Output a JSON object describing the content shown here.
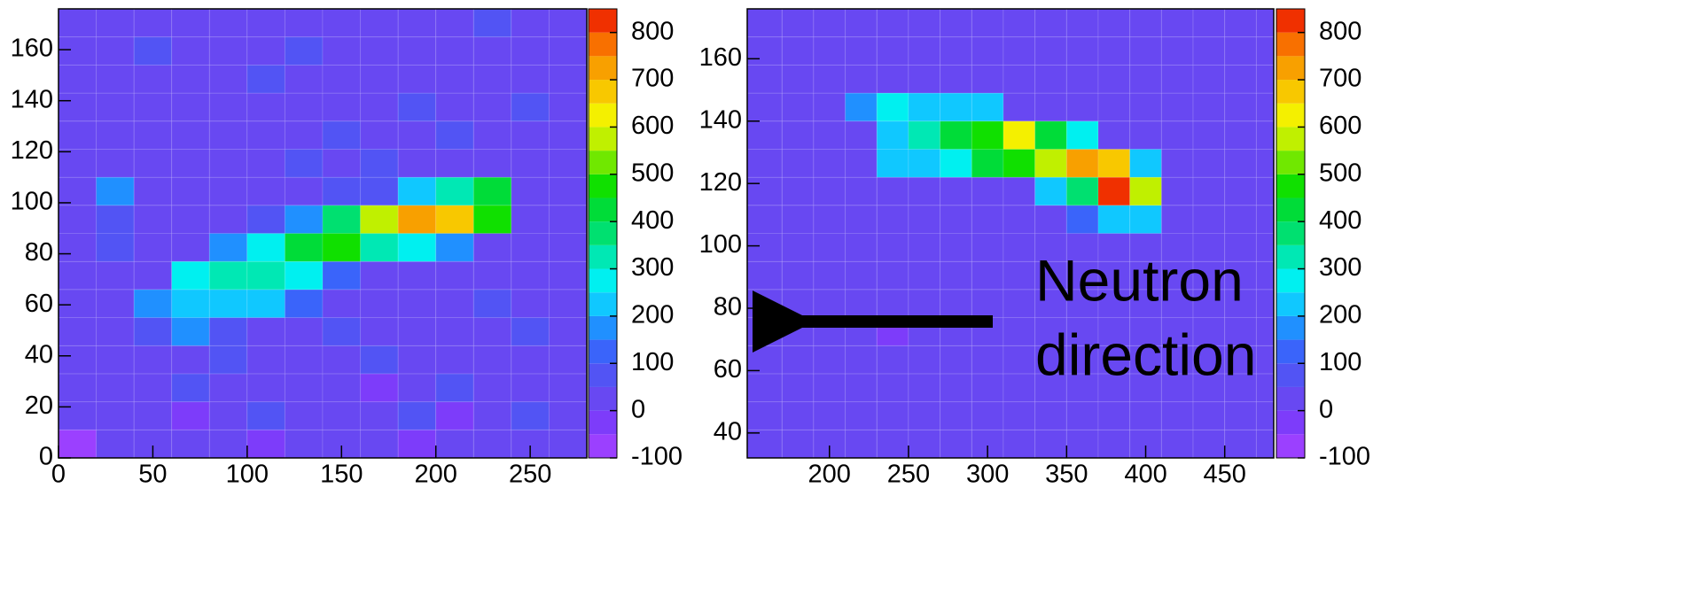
{
  "chart_data": [
    {
      "type": "heatmap",
      "xbins": [
        0,
        20,
        40,
        60,
        80,
        100,
        120,
        140,
        160,
        180,
        200,
        220,
        240,
        260,
        280
      ],
      "ybins": [
        0,
        11,
        22,
        33,
        44,
        55,
        66,
        77,
        88,
        99,
        110,
        121,
        132,
        143,
        154,
        165,
        176
      ],
      "xlim": [
        0,
        280
      ],
      "ylim": [
        0,
        176
      ],
      "xticks": [
        0,
        50,
        100,
        150,
        200,
        250
      ],
      "yticks": [
        0,
        20,
        40,
        60,
        80,
        100,
        120,
        140,
        160
      ],
      "zlim": [
        -100,
        850
      ],
      "zticks": [
        -100,
        0,
        100,
        200,
        300,
        400,
        500,
        600,
        700,
        800
      ],
      "colors": [
        "#9b40ff",
        "#7d3cfa",
        "#6848f2",
        "#5254f4",
        "#3a64fa",
        "#2090ff",
        "#10c8ff",
        "#00f0f0",
        "#00e8b4",
        "#00e070",
        "#00dc38",
        "#10e000",
        "#70e800",
        "#c0f000",
        "#f4f000",
        "#f8c800",
        "#f8a000",
        "#f87000",
        "#f03000"
      ],
      "z": [
        [
          -60,
          10,
          20,
          0,
          30,
          -10,
          20,
          40,
          0,
          -20,
          10,
          30,
          0,
          20
        ],
        [
          20,
          0,
          40,
          -10,
          10,
          60,
          0,
          30,
          10,
          50,
          -30,
          0,
          80,
          10
        ],
        [
          0,
          30,
          10,
          50,
          20,
          0,
          40,
          10,
          -10,
          20,
          60,
          10,
          30,
          0
        ],
        [
          40,
          10,
          20,
          30,
          60,
          10,
          0,
          20,
          50,
          10,
          0,
          40,
          10,
          20
        ],
        [
          10,
          30,
          80,
          150,
          90,
          40,
          20,
          60,
          10,
          30,
          20,
          0,
          50,
          10
        ],
        [
          0,
          20,
          150,
          220,
          230,
          230,
          120,
          40,
          20,
          10,
          30,
          60,
          0,
          20
        ],
        [
          30,
          10,
          40,
          250,
          320,
          330,
          280,
          100,
          40,
          20,
          10,
          0,
          30,
          10
        ],
        [
          20,
          60,
          30,
          40,
          180,
          250,
          400,
          450,
          300,
          250,
          150,
          40,
          10,
          30
        ],
        [
          40,
          90,
          20,
          10,
          30,
          60,
          150,
          350,
          550,
          700,
          650,
          450,
          30,
          10
        ],
        [
          10,
          150,
          30,
          20,
          10,
          40,
          20,
          60,
          80,
          200,
          300,
          400,
          20,
          0
        ],
        [
          20,
          0,
          40,
          10,
          30,
          20,
          50,
          10,
          60,
          30,
          20,
          10,
          40,
          20
        ],
        [
          0,
          30,
          10,
          20,
          40,
          10,
          30,
          70,
          20,
          10,
          50,
          30,
          10,
          20
        ],
        [
          30,
          10,
          20,
          40,
          0,
          30,
          10,
          20,
          40,
          60,
          10,
          20,
          50,
          10
        ],
        [
          10,
          40,
          30,
          0,
          20,
          50,
          20,
          10,
          30,
          20,
          40,
          10,
          20,
          30
        ],
        [
          20,
          10,
          50,
          30,
          10,
          20,
          60,
          30,
          10,
          40,
          20,
          30,
          10,
          0
        ],
        [
          0,
          20,
          10,
          40,
          30,
          10,
          20,
          40,
          20,
          10,
          30,
          50,
          20,
          10
        ]
      ]
    },
    {
      "type": "heatmap",
      "xbins": [
        148,
        170,
        190,
        210,
        230,
        250,
        270,
        290,
        310,
        330,
        350,
        370,
        390,
        410,
        430,
        450,
        470,
        481
      ],
      "ybins": [
        32,
        41,
        50,
        59,
        68,
        77,
        86,
        95,
        104,
        113,
        122,
        131,
        140,
        149,
        158,
        167,
        176
      ],
      "xlim": [
        148,
        481
      ],
      "ylim": [
        32,
        176
      ],
      "xticks": [
        200,
        250,
        300,
        350,
        400,
        450
      ],
      "yticks": [
        40,
        60,
        80,
        100,
        120,
        140,
        160
      ],
      "zlim": [
        -100,
        850
      ],
      "zticks": [
        -100,
        0,
        100,
        200,
        300,
        400,
        500,
        600,
        700,
        800
      ],
      "colors": [
        "#9b40ff",
        "#7d3cfa",
        "#6848f2",
        "#5254f4",
        "#3a64fa",
        "#2090ff",
        "#10c8ff",
        "#00f0f0",
        "#00e8b4",
        "#00e070",
        "#00dc38",
        "#10e000",
        "#70e800",
        "#c0f000",
        "#f4f000",
        "#f8c800",
        "#f8a000",
        "#f87000",
        "#f03000"
      ],
      "annotation": [
        "Neutron",
        "direction"
      ],
      "z": [
        [
          20,
          0,
          30,
          10,
          40,
          20,
          10,
          30,
          0,
          20,
          40,
          10,
          20,
          30,
          10,
          0,
          20
        ],
        [
          10,
          30,
          20,
          0,
          10,
          40,
          20,
          10,
          30,
          10,
          20,
          0,
          30,
          10,
          40,
          20,
          10
        ],
        [
          30,
          10,
          0,
          40,
          20,
          10,
          30,
          20,
          10,
          40,
          0,
          20,
          10,
          20,
          30,
          10,
          0
        ],
        [
          0,
          20,
          40,
          10,
          30,
          20,
          0,
          40,
          20,
          10,
          30,
          10,
          20,
          0,
          10,
          30,
          20
        ],
        [
          20,
          40,
          10,
          30,
          -40,
          10,
          20,
          30,
          10,
          0,
          20,
          40,
          10,
          30,
          20,
          10,
          30
        ],
        [
          10,
          0,
          30,
          20,
          10,
          30,
          40,
          10,
          30,
          20,
          10,
          30,
          0,
          20,
          10,
          40,
          10
        ],
        [
          30,
          20,
          10,
          0,
          20,
          40,
          10,
          20,
          0,
          30,
          40,
          10,
          20,
          10,
          30,
          0,
          20
        ],
        [
          0,
          30,
          20,
          40,
          10,
          20,
          30,
          0,
          20,
          10,
          30,
          20,
          40,
          10,
          20,
          30,
          10
        ],
        [
          20,
          10,
          40,
          10,
          30,
          0,
          20,
          30,
          40,
          20,
          100,
          200,
          230,
          20,
          10,
          20,
          30
        ],
        [
          10,
          30,
          0,
          20,
          10,
          30,
          40,
          20,
          30,
          200,
          350,
          800,
          550,
          40,
          20,
          10,
          0
        ],
        [
          30,
          0,
          20,
          10,
          200,
          220,
          250,
          400,
          450,
          550,
          700,
          650,
          200,
          10,
          30,
          20,
          10
        ],
        [
          0,
          20,
          10,
          30,
          200,
          300,
          400,
          450,
          600,
          400,
          250,
          30,
          20,
          40,
          10,
          0,
          20
        ],
        [
          20,
          10,
          30,
          150,
          250,
          200,
          230,
          200,
          30,
          10,
          20,
          40,
          10,
          20,
          30,
          10,
          20
        ],
        [
          10,
          40,
          20,
          0,
          30,
          10,
          20,
          30,
          20,
          40,
          10,
          20,
          30,
          10,
          0,
          40,
          10
        ],
        [
          30,
          20,
          10,
          40,
          10,
          30,
          0,
          20,
          10,
          30,
          20,
          10,
          40,
          20,
          10,
          30,
          20
        ],
        [
          0,
          30,
          20,
          10,
          40,
          20,
          30,
          10,
          40,
          0,
          30,
          20,
          10,
          30,
          20,
          0,
          10
        ]
      ]
    }
  ]
}
